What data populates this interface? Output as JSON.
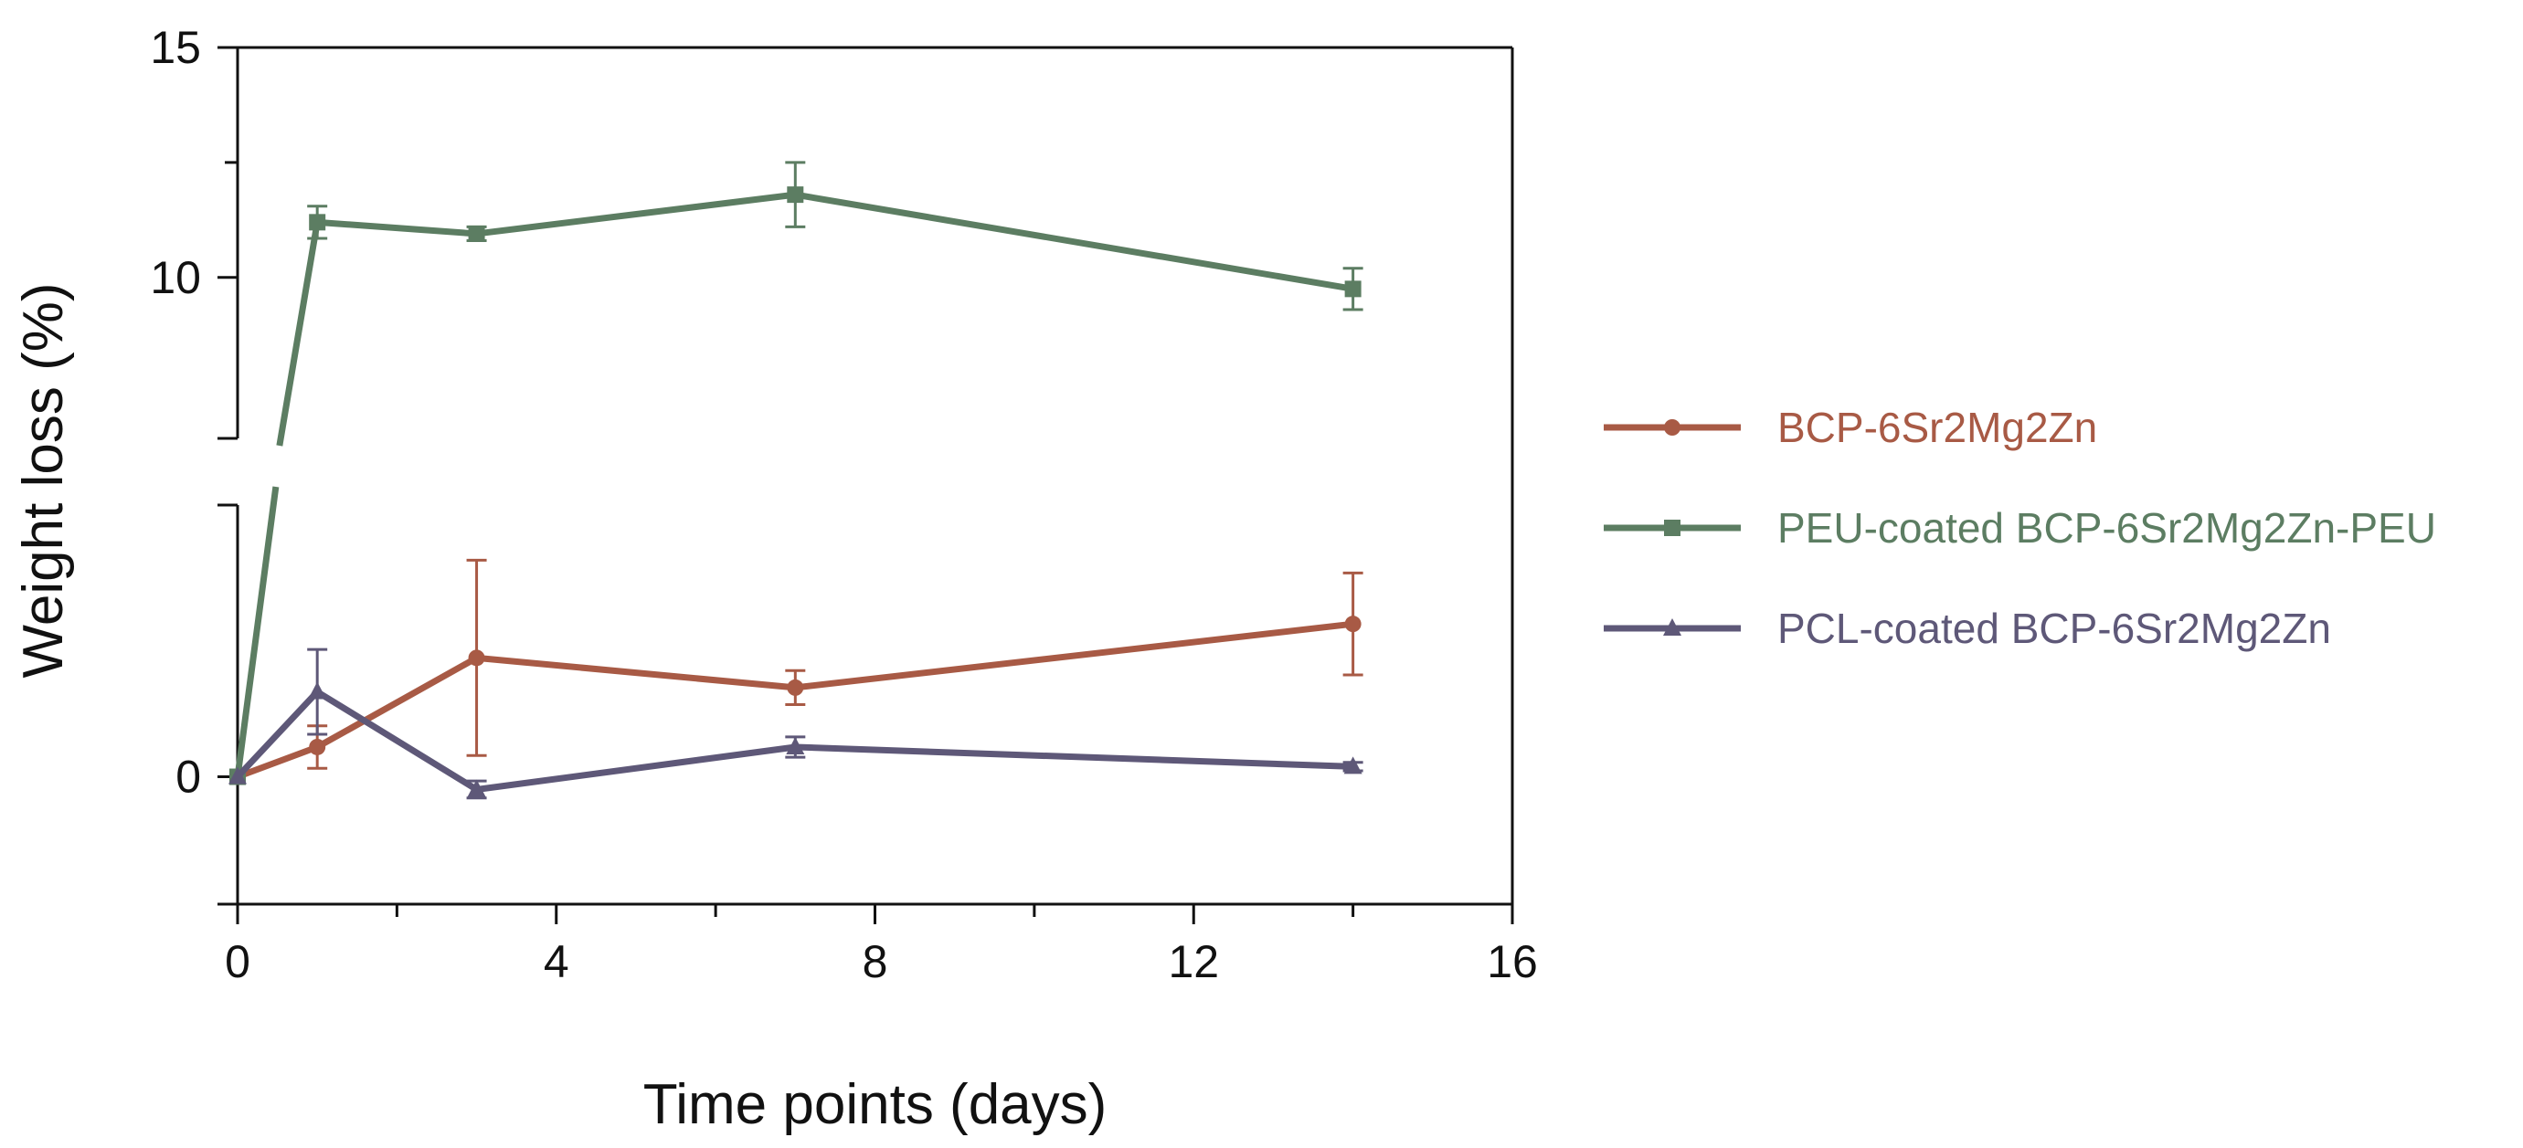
{
  "chart_data": {
    "type": "line",
    "title": "",
    "xlabel": "Time points (days)",
    "ylabel": "Weight loss (%)",
    "xlim": [
      0,
      16
    ],
    "x_ticks": [
      "0",
      "4",
      "8",
      "12",
      "16"
    ],
    "y_ticks": [
      "0",
      "10",
      "15"
    ],
    "y_axis_break": true,
    "lower_segment_range": [
      -1.5,
      3.2
    ],
    "upper_segment_range": [
      6.5,
      15
    ],
    "grid": false,
    "legend_position": "right",
    "series": [
      {
        "name": "BCP-6Sr2Mg2Zn",
        "color": "#a85a45",
        "marker": "circle",
        "x": [
          0,
          1,
          3,
          7,
          14
        ],
        "y": [
          0,
          0.35,
          1.4,
          1.05,
          1.8
        ],
        "err": [
          0,
          0.25,
          1.15,
          0.2,
          0.6
        ]
      },
      {
        "name": "PEU-coated BCP-6Sr2Mg2Zn-PEU",
        "color": "#5c7d62",
        "marker": "square",
        "x": [
          0,
          1,
          3,
          7,
          14
        ],
        "y": [
          0,
          11.2,
          10.95,
          11.8,
          9.75
        ],
        "err": [
          0,
          0.35,
          0.15,
          0.7,
          0.45
        ]
      },
      {
        "name": "PCL-coated BCP-6Sr2Mg2Zn",
        "color": "#5e5878",
        "marker": "triangle",
        "x": [
          0,
          1,
          3,
          7,
          14
        ],
        "y": [
          0,
          1.0,
          -0.15,
          0.35,
          0.12
        ],
        "err": [
          0,
          0.5,
          0.1,
          0.12,
          0.05
        ]
      }
    ]
  }
}
